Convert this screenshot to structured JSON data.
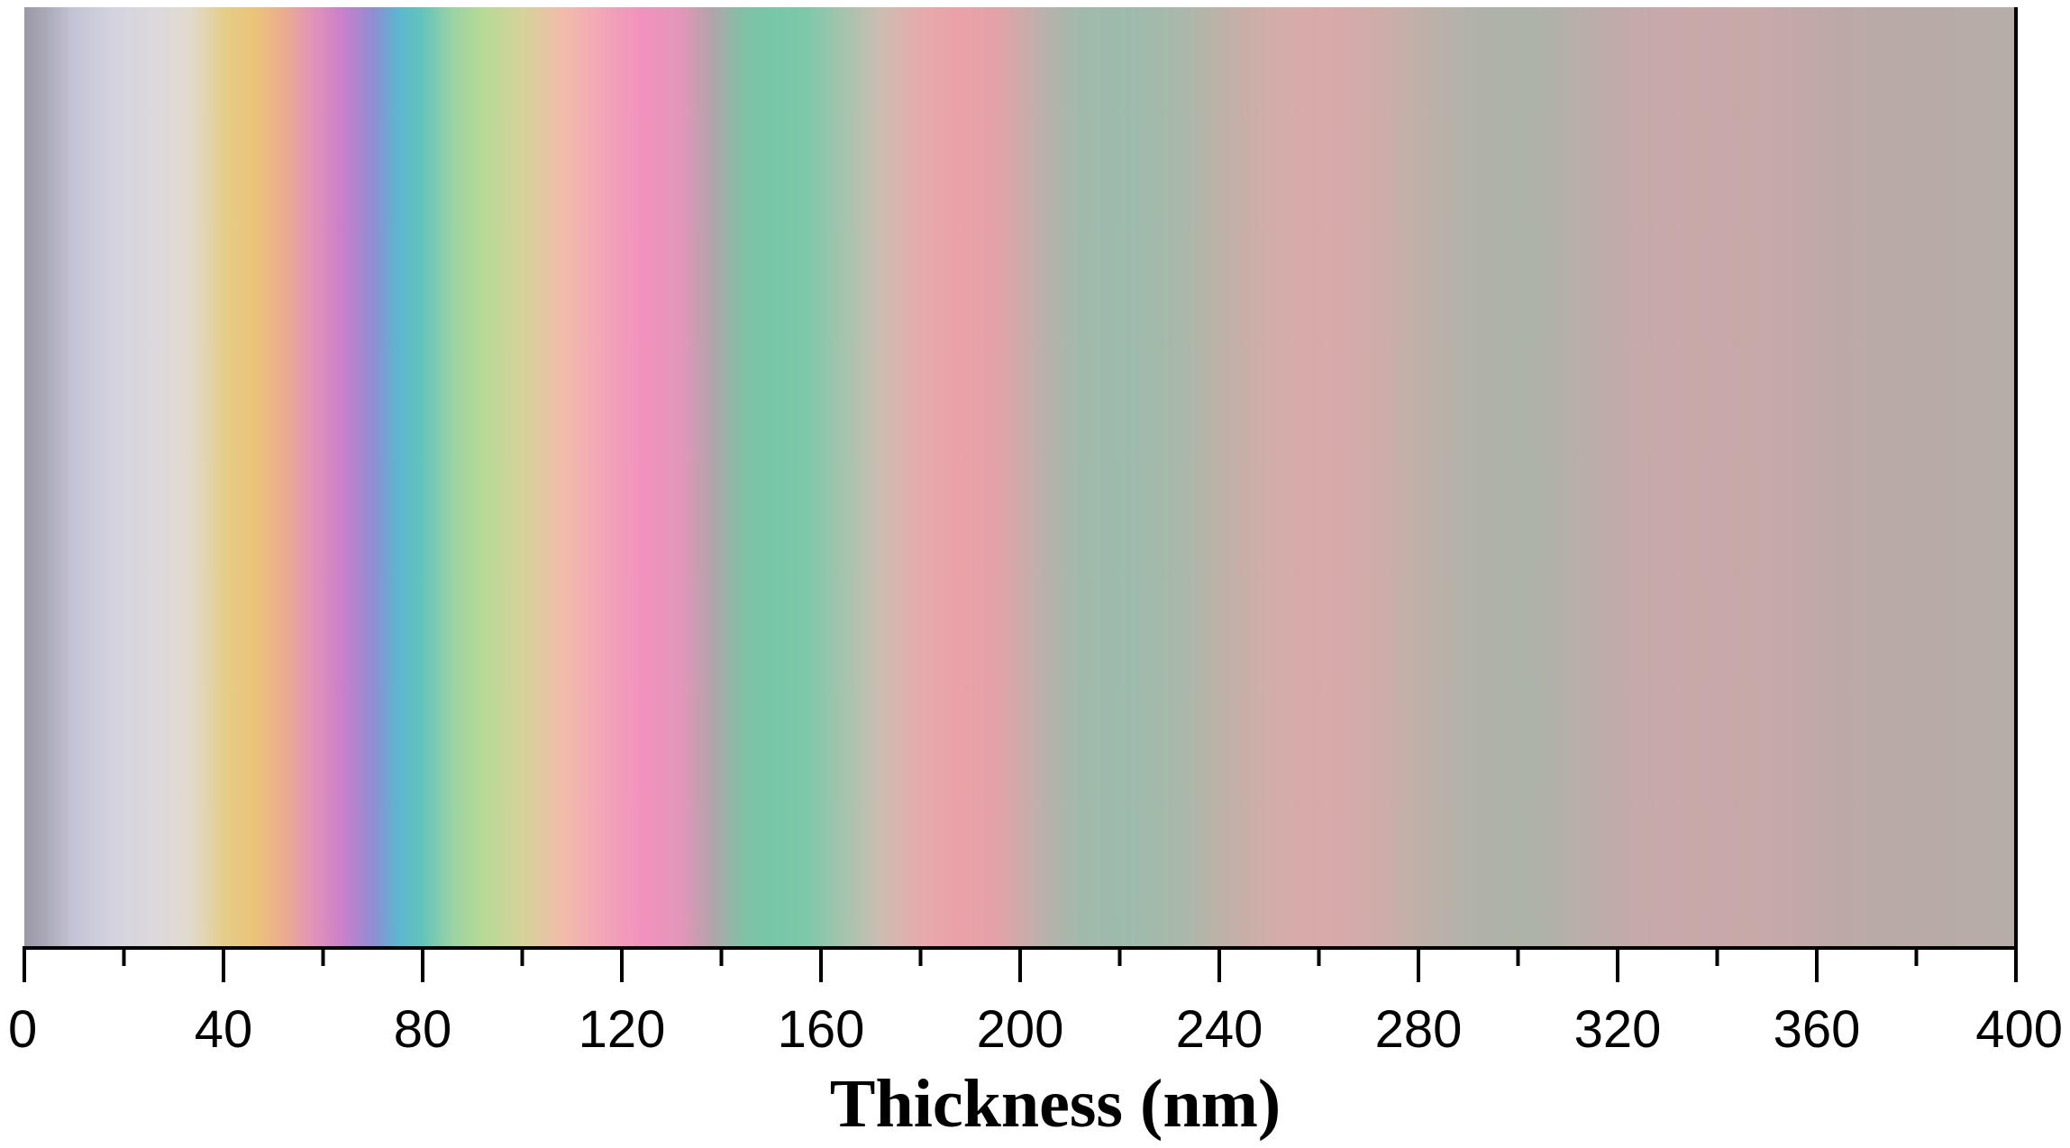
{
  "chart_data": {
    "type": "heatmap",
    "title": "",
    "xlabel": "Thickness (nm)",
    "ylabel": "",
    "xlim": [
      0,
      400
    ],
    "major_ticks": [
      0,
      40,
      80,
      120,
      160,
      200,
      240,
      280,
      320,
      360,
      400
    ],
    "tick_labels": [
      "0",
      "40",
      "80",
      "120",
      "160",
      "200",
      "240",
      "280",
      "320",
      "360",
      "400"
    ],
    "minor_tick_step": 20,
    "grid": false,
    "legend": "none",
    "color_stops": [
      {
        "x": 0,
        "color": "#9a97a6"
      },
      {
        "x": 4,
        "color": "#a9a7b6"
      },
      {
        "x": 10,
        "color": "#c4c4d6"
      },
      {
        "x": 18,
        "color": "#d4d3de"
      },
      {
        "x": 26,
        "color": "#dcd8dc"
      },
      {
        "x": 33,
        "color": "#e1dbcf"
      },
      {
        "x": 40,
        "color": "#e4cd8a"
      },
      {
        "x": 46,
        "color": "#ebc479"
      },
      {
        "x": 52,
        "color": "#ebad8e"
      },
      {
        "x": 58,
        "color": "#e193b8"
      },
      {
        "x": 64,
        "color": "#c97fcb"
      },
      {
        "x": 70,
        "color": "#8f8ed3"
      },
      {
        "x": 75,
        "color": "#5cb6d0"
      },
      {
        "x": 80,
        "color": "#63c4b9"
      },
      {
        "x": 86,
        "color": "#9ad3a3"
      },
      {
        "x": 92,
        "color": "#b6da96"
      },
      {
        "x": 100,
        "color": "#d6d29a"
      },
      {
        "x": 108,
        "color": "#f1bcaa"
      },
      {
        "x": 116,
        "color": "#f3a5b8"
      },
      {
        "x": 124,
        "color": "#f192bd"
      },
      {
        "x": 132,
        "color": "#e297b9"
      },
      {
        "x": 138,
        "color": "#b2a4ab"
      },
      {
        "x": 144,
        "color": "#82c0a6"
      },
      {
        "x": 150,
        "color": "#76c7a8"
      },
      {
        "x": 157,
        "color": "#7dc8a9"
      },
      {
        "x": 164,
        "color": "#a2c4ad"
      },
      {
        "x": 172,
        "color": "#cdbdb1"
      },
      {
        "x": 180,
        "color": "#e6aaac"
      },
      {
        "x": 188,
        "color": "#eaa1a8"
      },
      {
        "x": 196,
        "color": "#e1a3a8"
      },
      {
        "x": 204,
        "color": "#bcb0aa"
      },
      {
        "x": 212,
        "color": "#a1b9ab"
      },
      {
        "x": 222,
        "color": "#9dbbac"
      },
      {
        "x": 232,
        "color": "#a9b8aa"
      },
      {
        "x": 242,
        "color": "#c2b0a8"
      },
      {
        "x": 252,
        "color": "#d4aca9"
      },
      {
        "x": 262,
        "color": "#d8aaaa"
      },
      {
        "x": 272,
        "color": "#cfaca9"
      },
      {
        "x": 282,
        "color": "#bcb1a9"
      },
      {
        "x": 292,
        "color": "#b0b2a9"
      },
      {
        "x": 302,
        "color": "#adb3a8"
      },
      {
        "x": 312,
        "color": "#b7afa8"
      },
      {
        "x": 322,
        "color": "#c3aaa8"
      },
      {
        "x": 335,
        "color": "#c9a8a8"
      },
      {
        "x": 350,
        "color": "#c6a9a8"
      },
      {
        "x": 365,
        "color": "#bca9a7"
      },
      {
        "x": 380,
        "color": "#b8aba7"
      },
      {
        "x": 400,
        "color": "#b6aca8"
      }
    ]
  }
}
